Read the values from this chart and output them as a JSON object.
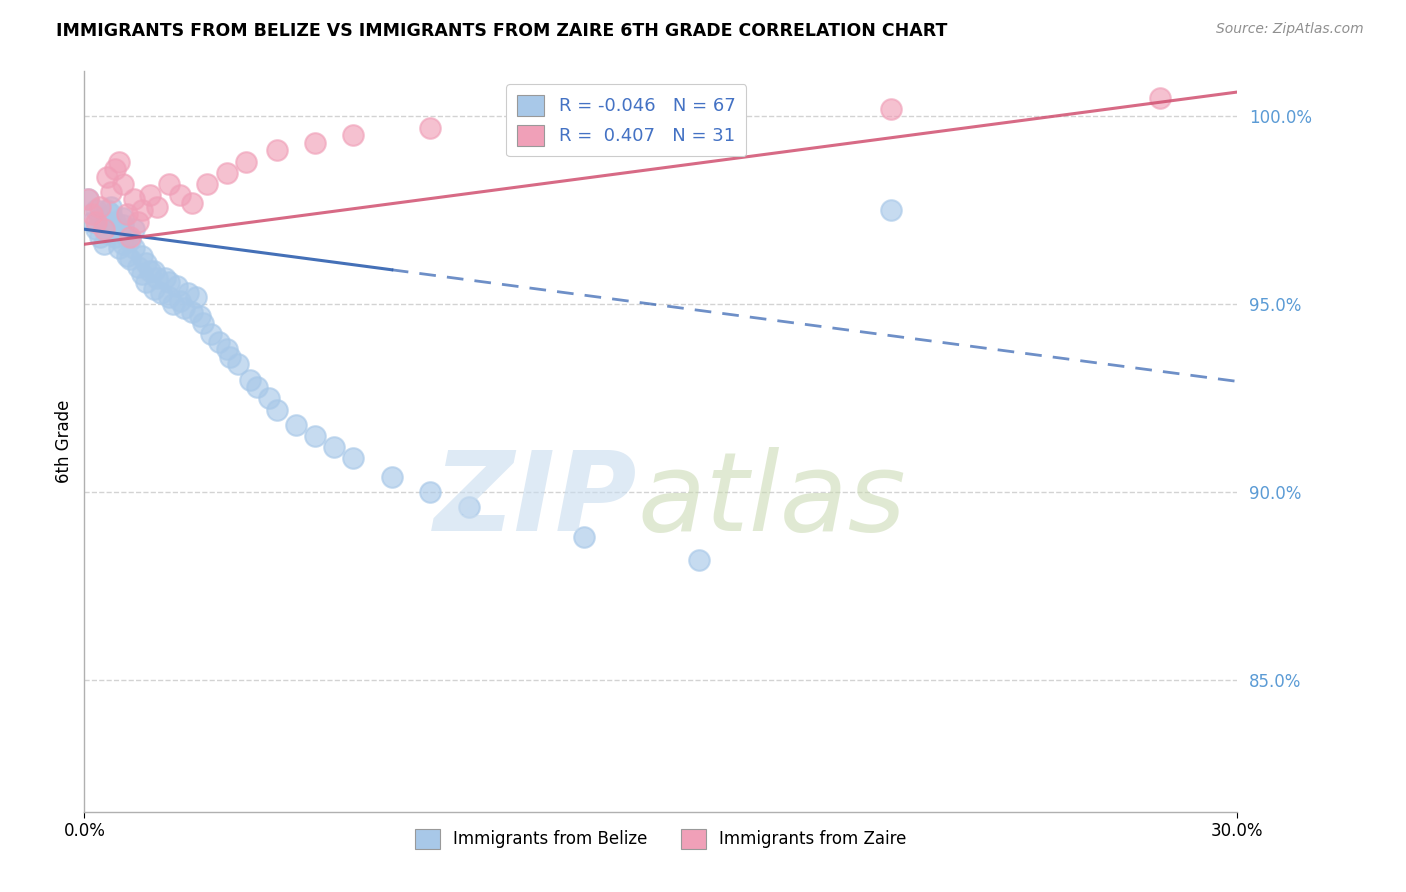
{
  "title": "IMMIGRANTS FROM BELIZE VS IMMIGRANTS FROM ZAIRE 6TH GRADE CORRELATION CHART",
  "source": "Source: ZipAtlas.com",
  "ylabel": "6th Grade",
  "xlim": [
    0.0,
    0.3
  ],
  "ylim": [
    0.815,
    1.012
  ],
  "y_ticks": [
    1.0,
    0.95,
    0.9,
    0.85
  ],
  "y_tick_labels": [
    "100.0%",
    "95.0%",
    "90.0%",
    "85.0%"
  ],
  "legend_belize": "Immigrants from Belize",
  "legend_zaire": "Immigrants from Zaire",
  "R_belize": -0.046,
  "N_belize": 67,
  "R_zaire": 0.407,
  "N_zaire": 31,
  "blue_color": "#A8C8E8",
  "pink_color": "#F0A0B8",
  "blue_line_color": "#3060B0",
  "pink_line_color": "#D05070",
  "belize_x": [
    0.001,
    0.002,
    0.003,
    0.003,
    0.004,
    0.004,
    0.005,
    0.005,
    0.006,
    0.006,
    0.007,
    0.007,
    0.007,
    0.008,
    0.008,
    0.009,
    0.009,
    0.01,
    0.01,
    0.01,
    0.011,
    0.011,
    0.012,
    0.012,
    0.013,
    0.013,
    0.014,
    0.015,
    0.015,
    0.016,
    0.016,
    0.017,
    0.018,
    0.018,
    0.019,
    0.02,
    0.021,
    0.022,
    0.022,
    0.023,
    0.024,
    0.025,
    0.026,
    0.027,
    0.028,
    0.029,
    0.03,
    0.031,
    0.033,
    0.035,
    0.037,
    0.038,
    0.04,
    0.043,
    0.045,
    0.048,
    0.05,
    0.055,
    0.06,
    0.065,
    0.07,
    0.08,
    0.09,
    0.1,
    0.13,
    0.16,
    0.21
  ],
  "belize_y": [
    0.978,
    0.972,
    0.975,
    0.97,
    0.968,
    0.973,
    0.966,
    0.971,
    0.969,
    0.975,
    0.97,
    0.974,
    0.976,
    0.968,
    0.972,
    0.965,
    0.97,
    0.966,
    0.971,
    0.973,
    0.963,
    0.968,
    0.962,
    0.967,
    0.965,
    0.97,
    0.96,
    0.958,
    0.963,
    0.956,
    0.961,
    0.959,
    0.954,
    0.959,
    0.957,
    0.953,
    0.957,
    0.952,
    0.956,
    0.95,
    0.955,
    0.951,
    0.949,
    0.953,
    0.948,
    0.952,
    0.947,
    0.945,
    0.942,
    0.94,
    0.938,
    0.936,
    0.934,
    0.93,
    0.928,
    0.925,
    0.922,
    0.918,
    0.915,
    0.912,
    0.909,
    0.904,
    0.9,
    0.896,
    0.888,
    0.882,
    0.975
  ],
  "zaire_x": [
    0.001,
    0.002,
    0.003,
    0.004,
    0.005,
    0.006,
    0.007,
    0.008,
    0.009,
    0.01,
    0.011,
    0.012,
    0.013,
    0.014,
    0.015,
    0.017,
    0.019,
    0.022,
    0.025,
    0.028,
    0.032,
    0.037,
    0.042,
    0.05,
    0.06,
    0.07,
    0.09,
    0.12,
    0.16,
    0.21,
    0.28
  ],
  "zaire_y": [
    0.978,
    0.974,
    0.972,
    0.976,
    0.97,
    0.984,
    0.98,
    0.986,
    0.988,
    0.982,
    0.974,
    0.968,
    0.978,
    0.972,
    0.975,
    0.979,
    0.976,
    0.982,
    0.979,
    0.977,
    0.982,
    0.985,
    0.988,
    0.991,
    0.993,
    0.995,
    0.997,
    0.996,
    0.999,
    1.002,
    1.005
  ]
}
